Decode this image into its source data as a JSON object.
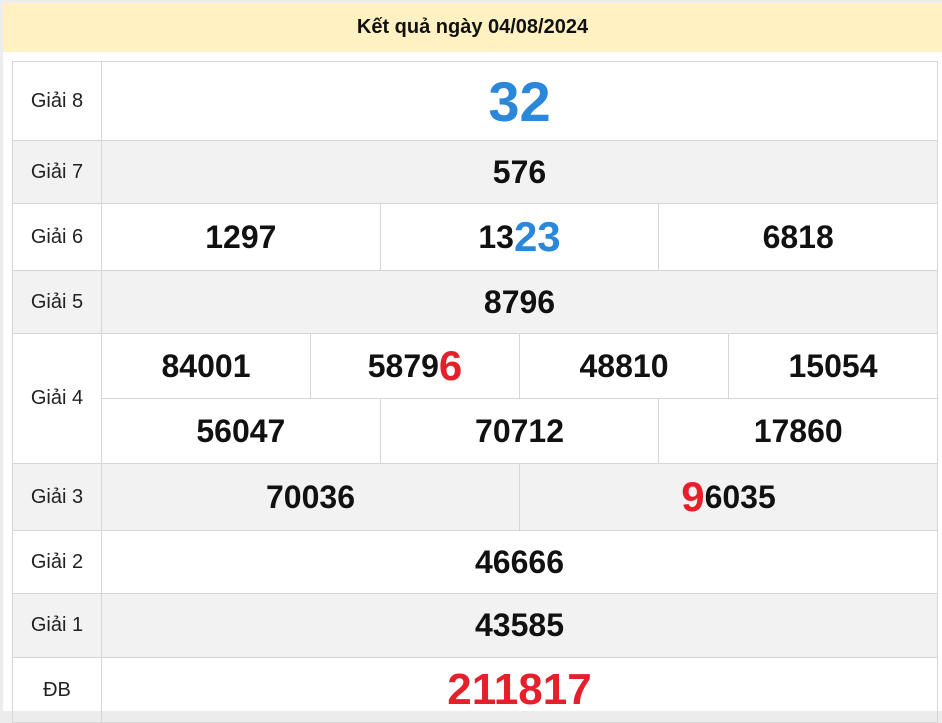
{
  "header": {
    "title": "Kết quả ngày 04/08/2024"
  },
  "colors": {
    "blue": "#2b87da",
    "red": "#e5202a",
    "header_bg": "#fff1c1"
  },
  "prizes": [
    {
      "label": "Giải 8",
      "rows": [
        [
          [
            {
              "t": "32",
              "c": "blue",
              "s": "big"
            }
          ]
        ]
      ]
    },
    {
      "label": "Giải 7",
      "rows": [
        [
          [
            {
              "t": "576"
            }
          ]
        ]
      ]
    },
    {
      "label": "Giải 6",
      "rows": [
        [
          [
            {
              "t": "1297"
            }
          ],
          [
            {
              "t": "13"
            },
            {
              "t": "23",
              "c": "blue",
              "s": "hl"
            }
          ],
          [
            {
              "t": "6818"
            }
          ]
        ]
      ]
    },
    {
      "label": "Giải 5",
      "rows": [
        [
          [
            {
              "t": "8796"
            }
          ]
        ]
      ]
    },
    {
      "label": "Giải 4",
      "rows": [
        [
          [
            {
              "t": "84001"
            }
          ],
          [
            {
              "t": "5879"
            },
            {
              "t": "6",
              "c": "red",
              "s": "hl"
            }
          ],
          [
            {
              "t": "48810"
            }
          ],
          [
            {
              "t": "15054"
            }
          ]
        ],
        [
          [
            {
              "t": "56047"
            }
          ],
          [
            {
              "t": "70712"
            }
          ],
          [
            {
              "t": "17860"
            }
          ]
        ]
      ]
    },
    {
      "label": "Giải 3",
      "rows": [
        [
          [
            {
              "t": "70036"
            }
          ],
          [
            {
              "t": "9",
              "c": "red",
              "s": "hl"
            },
            {
              "t": "6035"
            }
          ]
        ]
      ]
    },
    {
      "label": "Giải 2",
      "rows": [
        [
          [
            {
              "t": "46666"
            }
          ]
        ]
      ]
    },
    {
      "label": "Giải 1",
      "rows": [
        [
          [
            {
              "t": "43585"
            }
          ]
        ]
      ]
    },
    {
      "label": "ĐB",
      "rows": [
        [
          [
            {
              "t": "211817",
              "c": "red",
              "s": "red"
            }
          ]
        ]
      ]
    }
  ]
}
